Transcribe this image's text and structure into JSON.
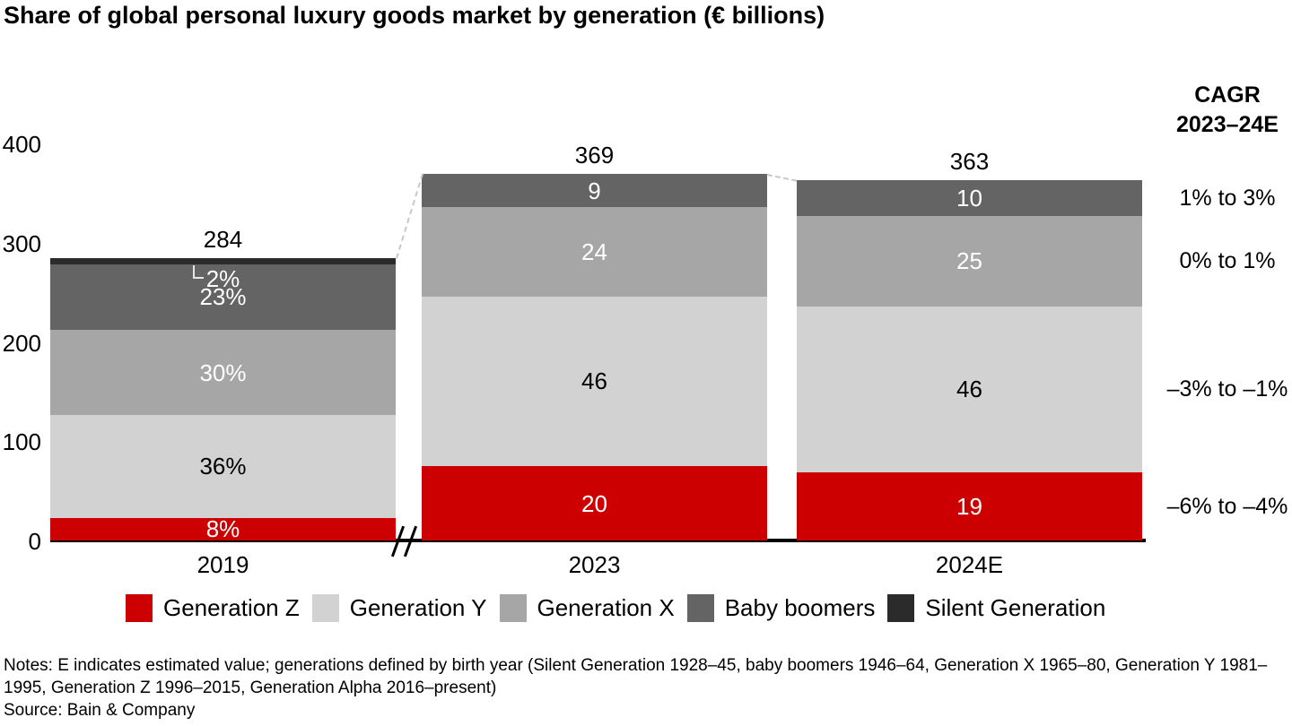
{
  "title": "Share of global personal luxury goods market by generation (€ billions)",
  "cagr_header": {
    "line1": "CAGR",
    "line2": "2023–24E"
  },
  "chart_data": {
    "type": "bar",
    "stacked": true,
    "title": "Share of global personal luxury goods market by generation (€ billions)",
    "unit": "€ billions",
    "ylim": [
      0,
      400
    ],
    "yticks": [
      0,
      100,
      200,
      300,
      400
    ],
    "grid": false,
    "legend_position": "bottom",
    "axis_break_after_first_bar": true,
    "categories": [
      "2019",
      "2023",
      "2024E"
    ],
    "totals": [
      284,
      369,
      363
    ],
    "series": [
      {
        "name": "Generation Z",
        "color": "#cc0000",
        "label_color": "#ffffff",
        "values": [
          8,
          20,
          19
        ],
        "labels": [
          "8%",
          "20",
          "19"
        ],
        "cagr": "–6% to –4%"
      },
      {
        "name": "Generation Y",
        "color": "#d2d2d2",
        "label_color": "#000000",
        "values": [
          36,
          46,
          46
        ],
        "labels": [
          "36%",
          "46",
          "46"
        ],
        "cagr": "–3% to –1%"
      },
      {
        "name": "Generation X",
        "color": "#a6a6a6",
        "label_color": "#ffffff",
        "values": [
          30,
          24,
          25
        ],
        "labels": [
          "30%",
          "24",
          "25"
        ],
        "cagr": "0% to 1%"
      },
      {
        "name": "Baby boomers",
        "color": "#646464",
        "label_color": "#ffffff",
        "values": [
          23,
          9,
          10
        ],
        "labels": [
          "23%",
          "9",
          "10"
        ],
        "cagr": "1% to 3%"
      },
      {
        "name": "Silent Generation",
        "color": "#2b2b2b",
        "label_color": "#ffffff",
        "values": [
          2,
          null,
          null
        ],
        "labels": [
          "2%",
          null,
          null
        ],
        "cagr": null
      }
    ]
  },
  "notes": "Notes: E indicates estimated value; generations defined by birth year (Silent Generation 1928–45, baby boomers 1946–64, Generation X 1965–80, Generation Y 1981–1995, Generation Z 1996–2015, Generation Alpha 2016–present)",
  "source": "Source: Bain & Company"
}
